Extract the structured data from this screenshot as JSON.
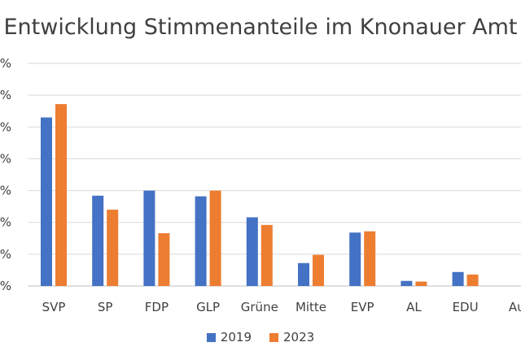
{
  "chart_data": {
    "type": "bar",
    "title": "Entwicklung Stimmenanteile im Knonauer Amt",
    "xlabel": "",
    "ylabel": "",
    "categories": [
      "SVP",
      "SP",
      "FDP",
      "GLP",
      "Grüne",
      "Mitte",
      "EVP",
      "AL",
      "EDU",
      "Au"
    ],
    "series": [
      {
        "name": "2019",
        "color": "#4472C4",
        "values": [
          26.5,
          14.2,
          15.0,
          14.1,
          10.8,
          3.6,
          8.4,
          0.8,
          2.2,
          0
        ]
      },
      {
        "name": "2023",
        "color": "#ED7D31",
        "values": [
          28.6,
          12.0,
          8.3,
          15.0,
          9.6,
          4.9,
          8.6,
          0.7,
          1.8,
          0
        ]
      }
    ],
    "ylim": [
      0,
      35
    ],
    "ytick_labels": [
      "0%",
      "0%",
      "0%",
      "0%",
      "0%",
      "0%",
      "0%",
      "0%"
    ],
    "grid": true,
    "legend": "bottom"
  }
}
